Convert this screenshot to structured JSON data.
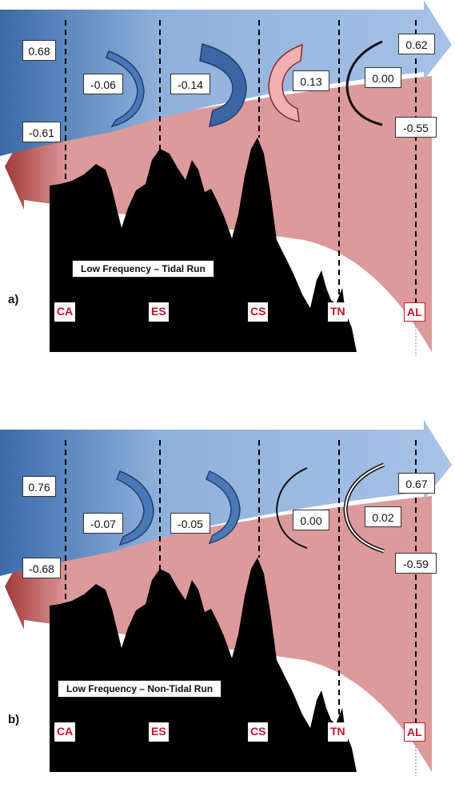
{
  "panels": [
    {
      "id": "a",
      "tag": "a)",
      "run_label": "Low Frequency – Tidal Run",
      "values": {
        "left_top": "0.68",
        "left_bottom": "-0.61",
        "arc1": "-0.06",
        "arc2": "-0.14",
        "arc3": "0.13",
        "arc4": "0.00",
        "right_top": "0.62",
        "right_bottom": "-0.55"
      },
      "sites": [
        "CA",
        "ES",
        "CS",
        "TN",
        "AL"
      ]
    },
    {
      "id": "b",
      "tag": "b)",
      "run_label": "Low Frequency – Non-Tidal Run",
      "values": {
        "left_top": "0.76",
        "left_bottom": "-0.68",
        "arc1": "-0.07",
        "arc2": "-0.05",
        "arc3": "0.00",
        "arc4": "0.02",
        "right_top": "0.67",
        "right_bottom": "-0.59"
      },
      "sites": [
        "CA",
        "ES",
        "CS",
        "TN",
        "AL"
      ]
    }
  ],
  "colors": {
    "flow_top": "#5a86c4",
    "flow_bottom": "#d98a8a",
    "site_text": "#c0142b",
    "terrain": "#000000"
  }
}
